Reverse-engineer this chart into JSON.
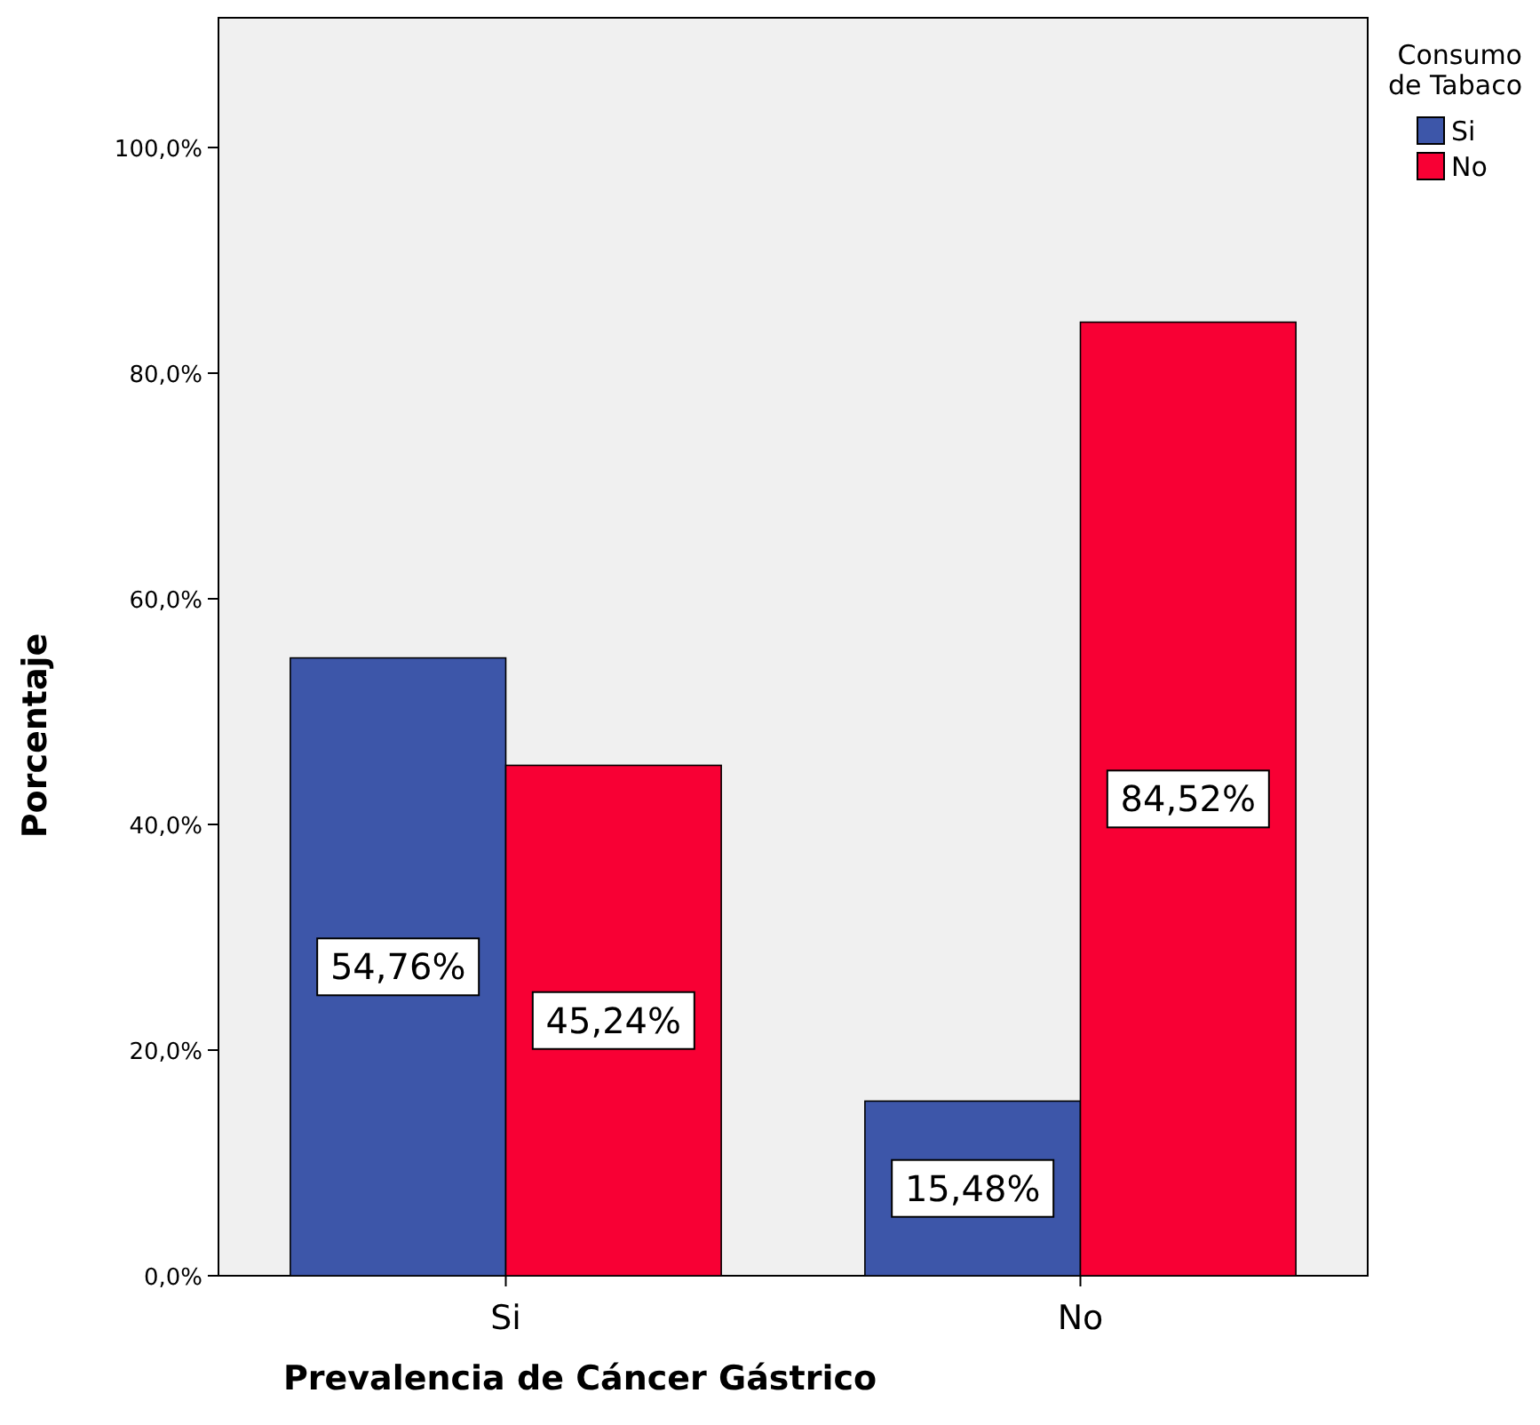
{
  "chart_data": {
    "type": "bar",
    "xlabel": "Prevalencia de Cáncer Gástrico",
    "ylabel": "Porcentaje",
    "legend_title": "Consumo de Tabaco",
    "categories": [
      "Si",
      "No"
    ],
    "series": [
      {
        "name": "Si",
        "color": "#3d56a9",
        "values": [
          54.76,
          15.48
        ],
        "value_labels": [
          "54,76%",
          "15,48%"
        ]
      },
      {
        "name": "No",
        "color": "#f80034",
        "values": [
          45.24,
          84.52
        ],
        "value_labels": [
          "45,24%",
          "84,52%"
        ]
      }
    ],
    "ylim": [
      0,
      111.5
    ],
    "yticks": [
      {
        "value": 0,
        "label": "0,0%"
      },
      {
        "value": 20,
        "label": "20,0%"
      },
      {
        "value": 40,
        "label": "40,0%"
      },
      {
        "value": 60,
        "label": "60,0%"
      },
      {
        "value": 80,
        "label": "80,0%"
      },
      {
        "value": 100,
        "label": "100,0%"
      }
    ],
    "grid": false,
    "legend": "top right"
  }
}
